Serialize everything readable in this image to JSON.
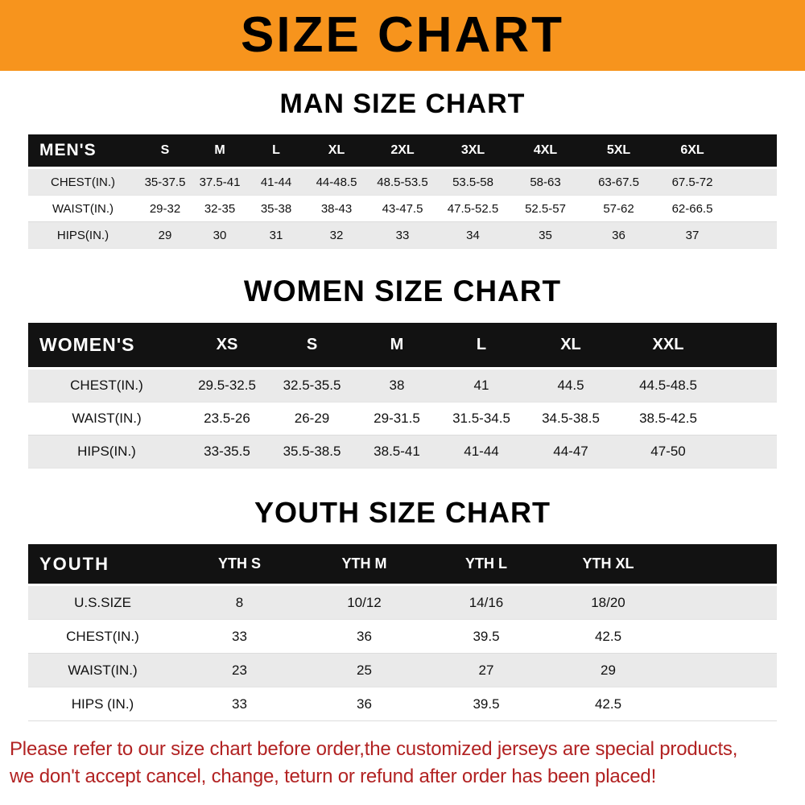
{
  "banner": {
    "title": "SIZE CHART"
  },
  "men": {
    "heading": "MAN SIZE CHART",
    "label": "MEN'S",
    "columns": [
      "S",
      "M",
      "L",
      "XL",
      "2XL",
      "3XL",
      "4XL",
      "5XL",
      "6XL"
    ],
    "rows": [
      {
        "label": "CHEST(IN.)",
        "values": [
          "35-37.5",
          "37.5-41",
          "41-44",
          "44-48.5",
          "48.5-53.5",
          "53.5-58",
          "58-63",
          "63-67.5",
          "67.5-72"
        ]
      },
      {
        "label": "WAIST(IN.)",
        "values": [
          "29-32",
          "32-35",
          "35-38",
          "38-43",
          "43-47.5",
          "47.5-52.5",
          "52.5-57",
          "57-62",
          "62-66.5"
        ]
      },
      {
        "label": "HIPS(IN.)",
        "values": [
          "29",
          "30",
          "31",
          "32",
          "33",
          "34",
          "35",
          "36",
          "37"
        ]
      }
    ]
  },
  "women": {
    "heading": "WOMEN SIZE CHART",
    "label": "WOMEN'S",
    "columns": [
      "XS",
      "S",
      "M",
      "L",
      "XL",
      "XXL"
    ],
    "rows": [
      {
        "label": "CHEST(IN.)",
        "values": [
          "29.5-32.5",
          "32.5-35.5",
          "38",
          "41",
          "44.5",
          "44.5-48.5"
        ]
      },
      {
        "label": "WAIST(IN.)",
        "values": [
          "23.5-26",
          "26-29",
          "29-31.5",
          "31.5-34.5",
          "34.5-38.5",
          "38.5-42.5"
        ]
      },
      {
        "label": "HIPS(IN.)",
        "values": [
          "33-35.5",
          "35.5-38.5",
          "38.5-41",
          "41-44",
          "44-47",
          "47-50"
        ]
      }
    ]
  },
  "youth": {
    "heading": "YOUTH SIZE CHART",
    "label": "YOUTH",
    "columns": [
      "YTH S",
      "YTH M",
      "YTH L",
      "YTH XL"
    ],
    "rows": [
      {
        "label": "U.S.SIZE",
        "values": [
          "8",
          "10/12",
          "14/16",
          "18/20"
        ]
      },
      {
        "label": "CHEST(IN.)",
        "values": [
          "33",
          "36",
          "39.5",
          "42.5"
        ]
      },
      {
        "label": "WAIST(IN.)",
        "values": [
          "23",
          "25",
          "27",
          "29"
        ]
      },
      {
        "label": "HIPS (IN.)",
        "values": [
          "33",
          "36",
          "39.5",
          "42.5"
        ]
      }
    ]
  },
  "footer": {
    "line1": "Please refer to our size chart before order,the customized jerseys are special products,",
    "line2": "we don't accept cancel, change, teturn or refund after order has been placed!"
  },
  "colors": {
    "banner_orange": "#F7941D",
    "table_header_black": "#121212",
    "row_gray": "#EAEAEA",
    "footer_red": "#B22222"
  }
}
